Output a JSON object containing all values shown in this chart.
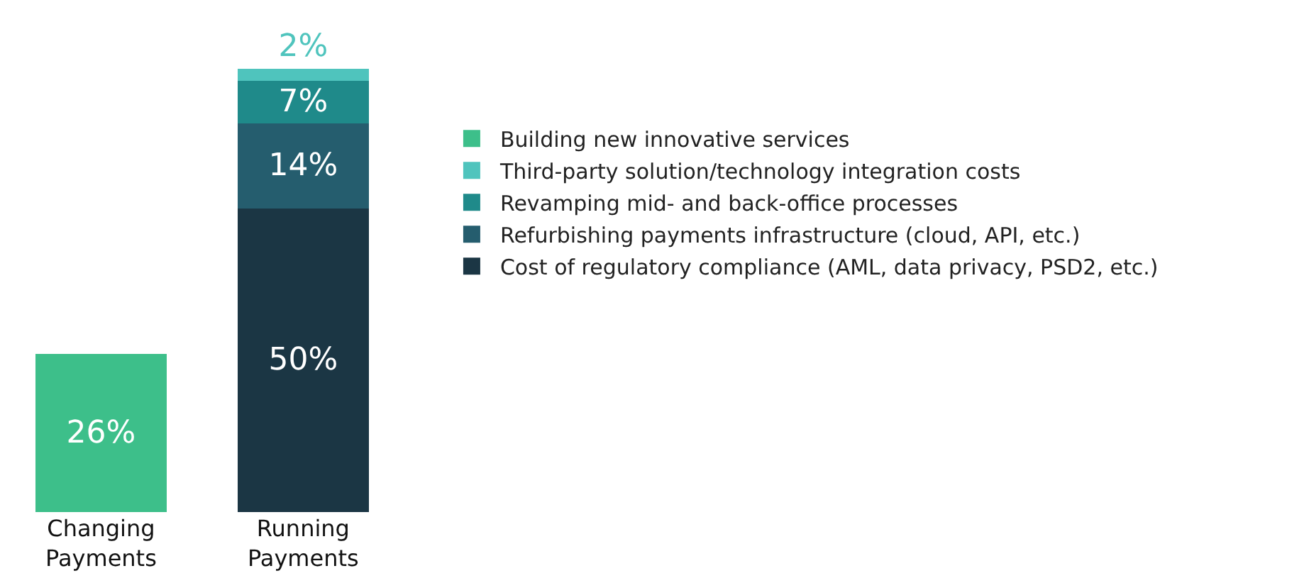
{
  "chart_data": {
    "type": "bar",
    "stacked": true,
    "legend": "right",
    "grid": false,
    "categories": [
      "Changing\nPayments",
      "Running\nPayments"
    ],
    "series": [
      {
        "name": "Cost of regulatory compliance (AML, data privacy, PSD2, etc.)",
        "color": "#1b3644",
        "values": [
          null,
          50
        ],
        "value_labels": [
          null,
          "50%"
        ]
      },
      {
        "name": "Refurbishing payments infrastructure (cloud, API, etc.)",
        "color": "#255d6e",
        "values": [
          null,
          14
        ],
        "value_labels": [
          null,
          "14%"
        ]
      },
      {
        "name": "Revamping mid- and back-office processes",
        "color": "#1f8a8a",
        "values": [
          null,
          7
        ],
        "value_labels": [
          null,
          "7%"
        ]
      },
      {
        "name": "Third-party solution/technology integration costs",
        "color": "#4fc4bd",
        "values": [
          null,
          2
        ],
        "value_labels": [
          null,
          "2%"
        ]
      },
      {
        "name": "Building new innovative services",
        "color": "#3dbf8a",
        "values": [
          26,
          null
        ],
        "value_labels": [
          "26%",
          null
        ]
      }
    ]
  }
}
